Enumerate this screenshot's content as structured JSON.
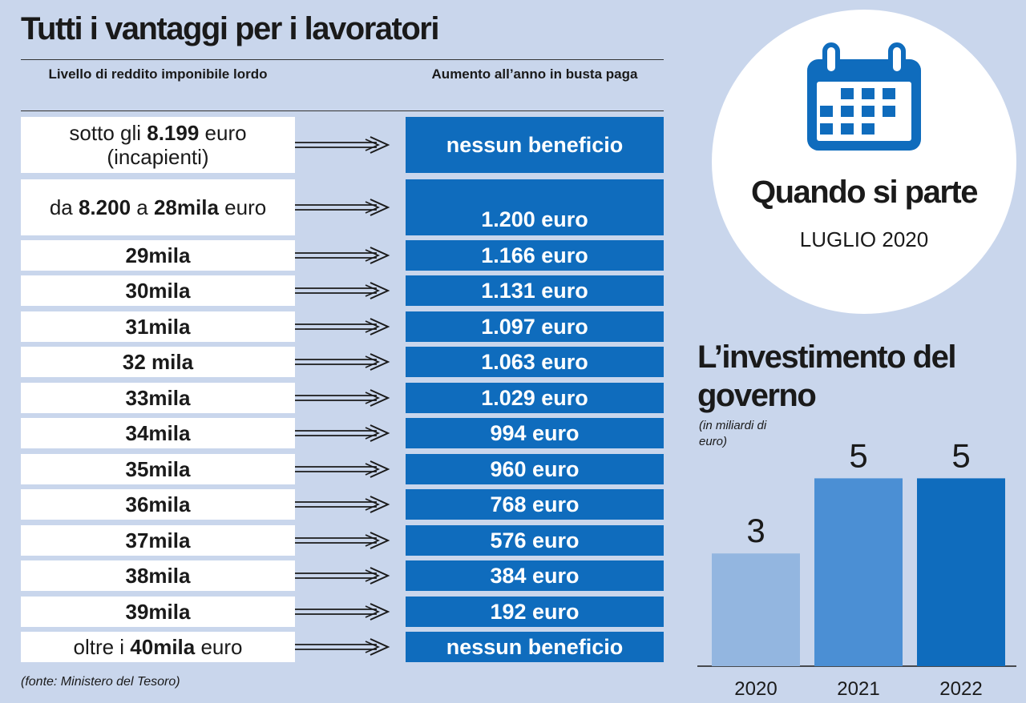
{
  "title": "Tutti i vantaggi per i lavoratori",
  "table": {
    "header_left": "Livello di reddito imponibile lordo",
    "header_right": "Aumento all’anno in busta paga",
    "rows": [
      {
        "income_parts": [
          {
            "t": "sotto gli ",
            "b": false
          },
          {
            "t": "8.199",
            "b": true
          },
          {
            "t": " euro (incapienti)",
            "b": false
          }
        ],
        "benefit": "nessun beneficio"
      },
      {
        "income_parts": [
          {
            "t": "da ",
            "b": false
          },
          {
            "t": "8.200",
            "b": true
          },
          {
            "t": " a ",
            "b": false
          },
          {
            "t": "28mila",
            "b": true
          },
          {
            "t": " euro",
            "b": false
          }
        ],
        "benefit": "1.200 euro"
      },
      {
        "income_parts": [
          {
            "t": "29mila",
            "b": true
          }
        ],
        "benefit": "1.166 euro"
      },
      {
        "income_parts": [
          {
            "t": "30mila",
            "b": true
          }
        ],
        "benefit": "1.131 euro"
      },
      {
        "income_parts": [
          {
            "t": "31mila",
            "b": true
          }
        ],
        "benefit": "1.097 euro"
      },
      {
        "income_parts": [
          {
            "t": "32 mila",
            "b": true
          }
        ],
        "benefit": "1.063 euro"
      },
      {
        "income_parts": [
          {
            "t": "33mila",
            "b": true
          }
        ],
        "benefit": "1.029 euro"
      },
      {
        "income_parts": [
          {
            "t": "34mila",
            "b": true
          }
        ],
        "benefit": "994 euro"
      },
      {
        "income_parts": [
          {
            "t": "35mila",
            "b": true
          }
        ],
        "benefit": "960 euro"
      },
      {
        "income_parts": [
          {
            "t": "36mila",
            "b": true
          }
        ],
        "benefit": "768 euro"
      },
      {
        "income_parts": [
          {
            "t": "37mila",
            "b": true
          }
        ],
        "benefit": "576 euro"
      },
      {
        "income_parts": [
          {
            "t": "38mila",
            "b": true
          }
        ],
        "benefit": "384 euro"
      },
      {
        "income_parts": [
          {
            "t": "39mila",
            "b": true
          }
        ],
        "benefit": "192 euro"
      },
      {
        "income_parts": [
          {
            "t": "oltre i ",
            "b": false
          },
          {
            "t": "40mila",
            "b": true
          },
          {
            "t": " euro",
            "b": false
          }
        ],
        "benefit": "nessun beneficio"
      }
    ]
  },
  "source": "(fonte: Ministero del Tesoro)",
  "start": {
    "title": "Quando si parte",
    "value": "LUGLIO 2020",
    "icon": "calendar-icon"
  },
  "investment": {
    "title": "L’investimento del governo",
    "unit": "(in miliardi di euro)"
  },
  "chart_data": {
    "type": "bar",
    "categories": [
      "2020",
      "2021",
      "2022"
    ],
    "values": [
      3,
      5,
      5
    ],
    "ylim": [
      0,
      6
    ],
    "bar_colors": [
      "#93b6e0",
      "#4b8fd4",
      "#0f6cbd"
    ],
    "grid": false,
    "legend": "none"
  },
  "colors": {
    "background": "#c9d6ec",
    "accent": "#0f6cbd",
    "text": "#1a1a1a"
  }
}
